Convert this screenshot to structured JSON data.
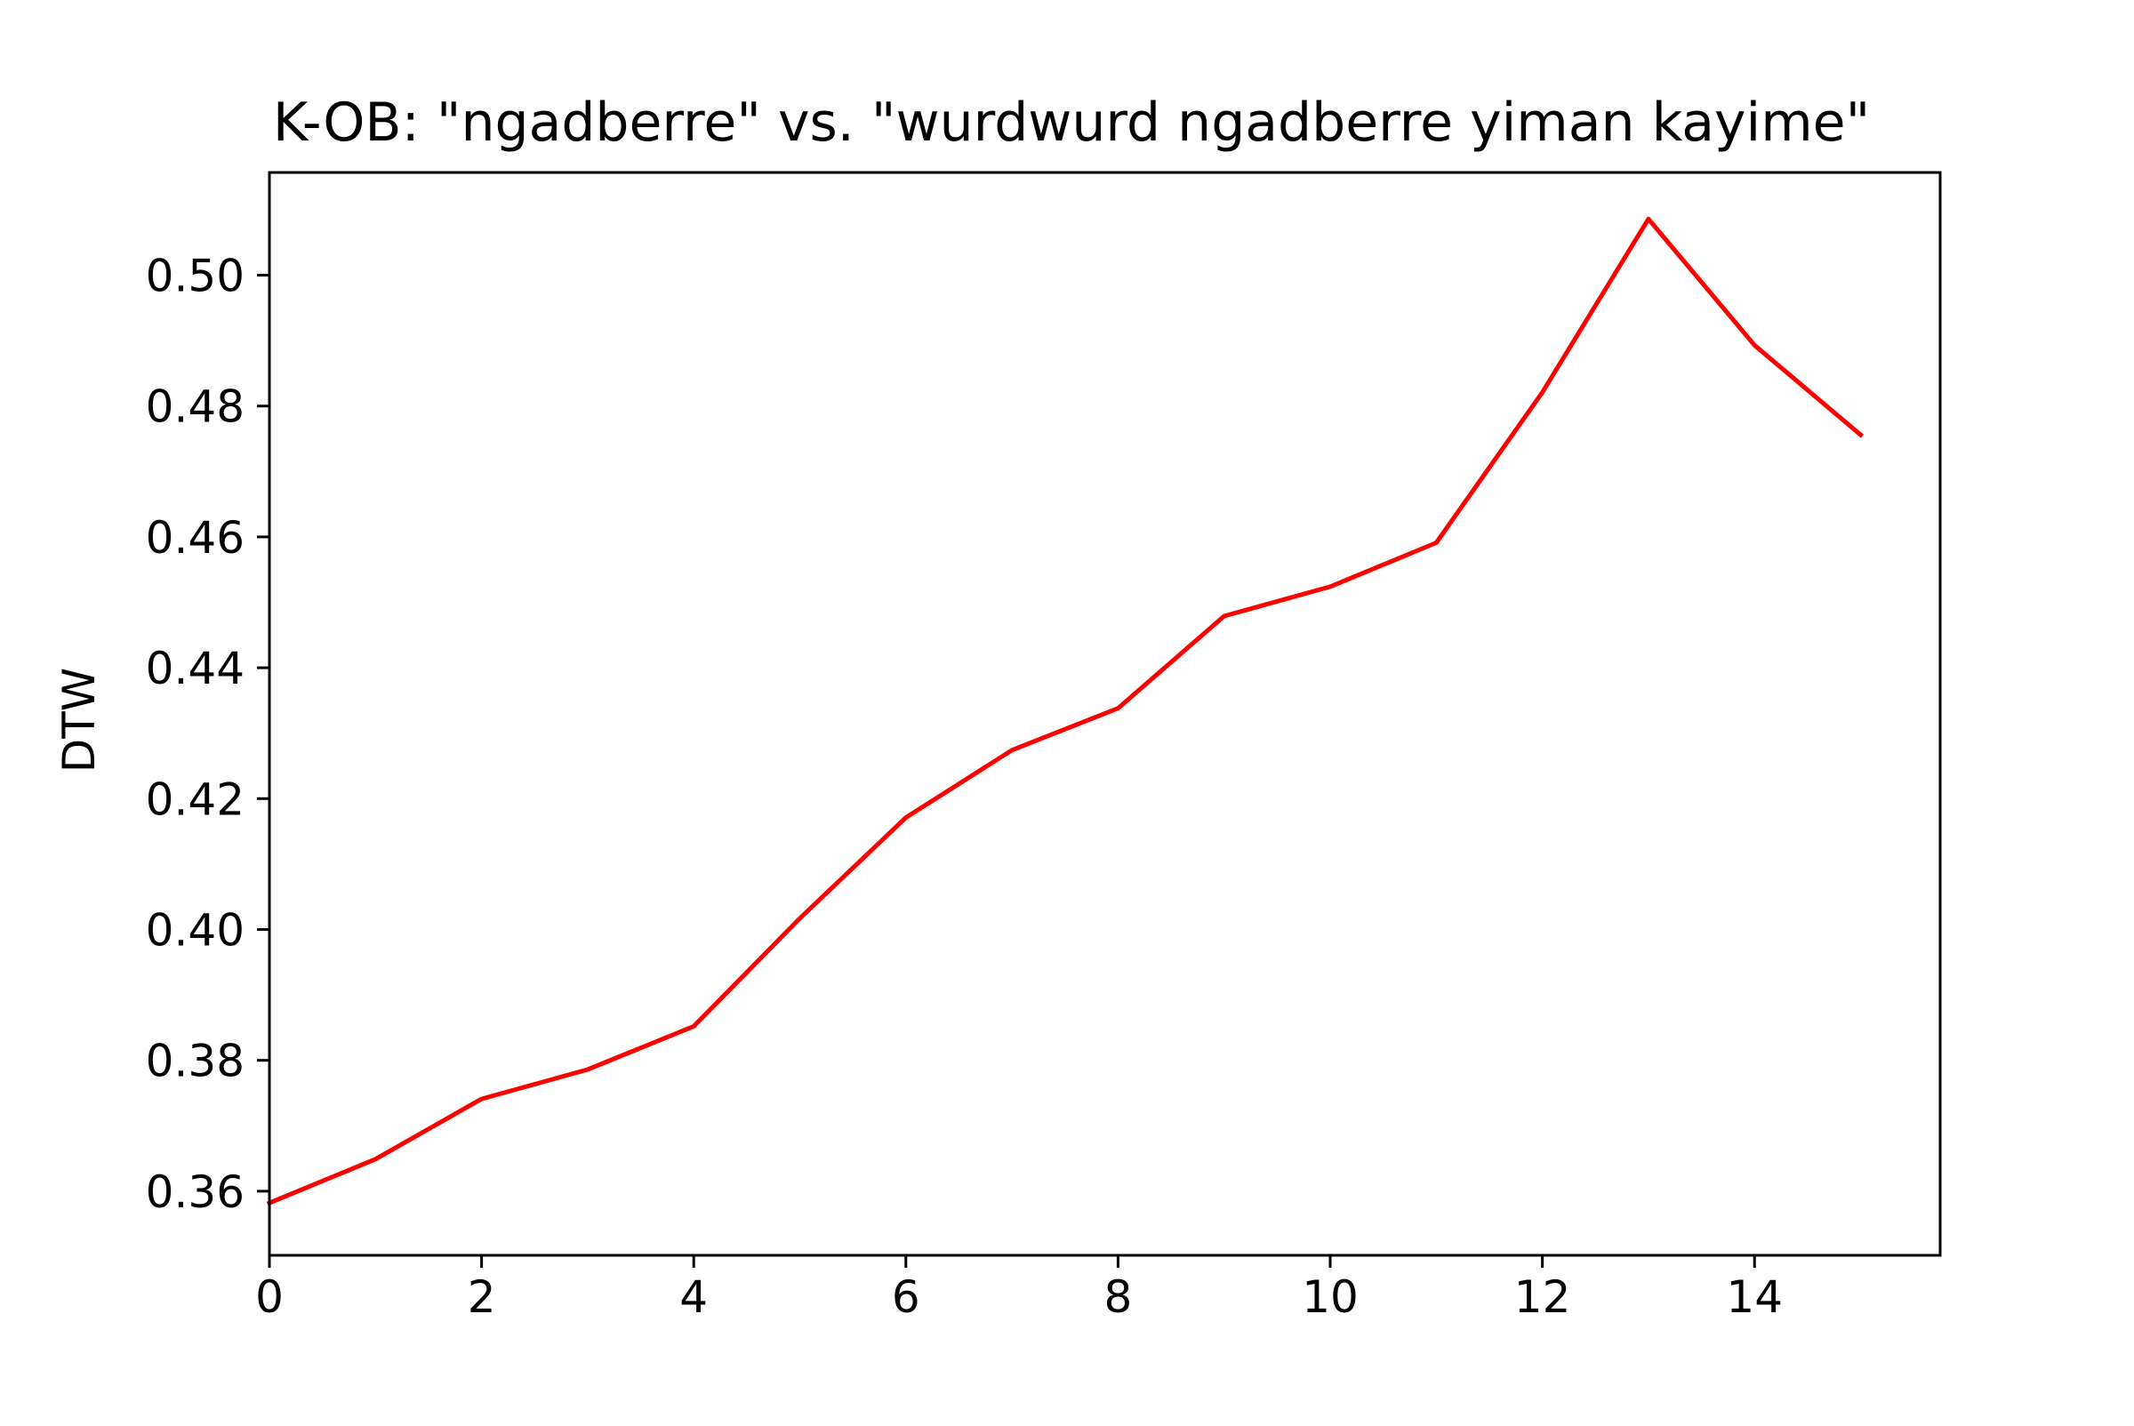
{
  "chart_data": {
    "type": "line",
    "title": "K-OB: \"ngadberre\" vs. \"wurdwurd ngadberre yiman kayime\"",
    "xlabel": "",
    "ylabel": "DTW",
    "xlim": [
      0,
      15.75
    ],
    "ylim": [
      0.3502,
      0.5157
    ],
    "xticks": [
      0,
      2,
      4,
      6,
      8,
      10,
      12,
      14
    ],
    "xtick_labels": [
      "0",
      "2",
      "4",
      "6",
      "8",
      "10",
      "12",
      "14"
    ],
    "yticks": [
      0.36,
      0.38,
      0.4,
      0.42,
      0.44,
      0.46,
      0.48,
      0.5
    ],
    "ytick_labels": [
      "0.36",
      "0.38",
      "0.40",
      "0.42",
      "0.44",
      "0.46",
      "0.48",
      "0.50"
    ],
    "grid": false,
    "series": [
      {
        "color": "#ff0000",
        "x": [
          0,
          1,
          2,
          3,
          4,
          5,
          6,
          7,
          8,
          9,
          10,
          11,
          12,
          13,
          14,
          15
        ],
        "values": [
          0.3582,
          0.3649,
          0.3741,
          0.3786,
          0.3852,
          0.4017,
          0.4171,
          0.4274,
          0.4338,
          0.4479,
          0.4524,
          0.4591,
          0.4821,
          0.5086,
          0.4893,
          0.4756
        ]
      }
    ]
  }
}
